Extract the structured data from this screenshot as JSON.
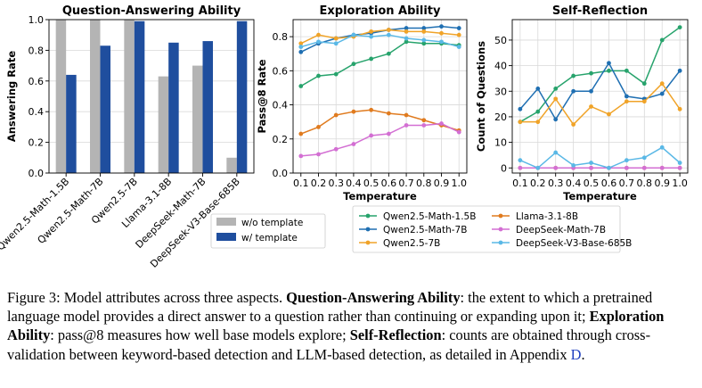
{
  "colors": {
    "without_template": "#b4b4b4",
    "with_template": "#1f4e9e",
    "Qwen2.5-Math-1.5B": "#27a36c",
    "Qwen2.5-Math-7B": "#1f6fb2",
    "Qwen2.5-7B": "#f0a328",
    "Llama-3.1-8B": "#e07b1f",
    "DeepSeek-Math-7B": "#d36fd3",
    "DeepSeek-V3-Base-685B": "#5ab8e6",
    "reference_link": "#1f3fbf"
  },
  "chart_data": [
    {
      "type": "bar",
      "title": "Question-Answering Ability",
      "xlabel": "",
      "ylabel": "Answering Rate",
      "ylim": [
        0,
        1.0
      ],
      "yticks": [
        0.0,
        0.2,
        0.4,
        0.6,
        0.8,
        1.0
      ],
      "ytick_labels": [
        "0.0",
        "0.2",
        "0.4",
        "0.6",
        "0.8",
        "1.0"
      ],
      "categories": [
        "Qwen2.5-Math-1.5B",
        "Qwen2.5-Math-7B",
        "Qwen2.5-7B",
        "Llama-3.1-8B",
        "DeepSeek-Math-7B",
        "DeepSeek-V3-Base-685B"
      ],
      "series": [
        {
          "name": "w/o template",
          "values": [
            1.0,
            1.0,
            1.0,
            0.63,
            0.7,
            0.1
          ]
        },
        {
          "name": "w/ template",
          "values": [
            0.64,
            0.83,
            0.99,
            0.85,
            0.86,
            0.99
          ]
        }
      ],
      "legend_position": "bottom-right, below plot",
      "grid": true
    },
    {
      "type": "line",
      "title": "Exploration Ability",
      "xlabel": "Temperature",
      "ylabel": "Pass@8 Rate",
      "ylim": [
        0.0,
        0.9
      ],
      "yticks": [
        0.0,
        0.2,
        0.4,
        0.6,
        0.8
      ],
      "ytick_labels": [
        "0.0",
        "0.2",
        "0.4",
        "0.6",
        "0.8"
      ],
      "x": [
        0.1,
        0.2,
        0.3,
        0.4,
        0.5,
        0.6,
        0.7,
        0.8,
        0.9,
        1.0
      ],
      "xtick_labels": [
        "0.1",
        "0.2",
        "0.3",
        "0.4",
        "0.5",
        "0.6",
        "0.7",
        "0.8",
        "0.9",
        "1.0"
      ],
      "series": [
        {
          "name": "Qwen2.5-Math-1.5B",
          "values": [
            0.51,
            0.57,
            0.58,
            0.64,
            0.67,
            0.7,
            0.77,
            0.76,
            0.76,
            0.75
          ]
        },
        {
          "name": "Qwen2.5-Math-7B",
          "values": [
            0.71,
            0.76,
            0.79,
            0.81,
            0.82,
            0.84,
            0.85,
            0.85,
            0.86,
            0.85
          ]
        },
        {
          "name": "Qwen2.5-7B",
          "values": [
            0.76,
            0.81,
            0.79,
            0.8,
            0.83,
            0.84,
            0.83,
            0.83,
            0.82,
            0.81
          ]
        },
        {
          "name": "Llama-3.1-8B",
          "values": [
            0.23,
            0.27,
            0.34,
            0.36,
            0.37,
            0.35,
            0.34,
            0.31,
            0.28,
            0.25
          ]
        },
        {
          "name": "DeepSeek-Math-7B",
          "values": [
            0.1,
            0.11,
            0.14,
            0.17,
            0.22,
            0.23,
            0.28,
            0.28,
            0.29,
            0.24
          ]
        },
        {
          "name": "DeepSeek-V3-Base-685B",
          "values": [
            0.74,
            0.77,
            0.76,
            0.81,
            0.8,
            0.81,
            0.79,
            0.78,
            0.77,
            0.74
          ]
        }
      ],
      "grid": true
    },
    {
      "type": "line",
      "title": "Self-Reflection",
      "xlabel": "Temperature",
      "ylabel": "Count of Questions",
      "ylim": [
        -2,
        58
      ],
      "yticks": [
        0,
        10,
        20,
        30,
        40,
        50
      ],
      "ytick_labels": [
        "0",
        "10",
        "20",
        "30",
        "40",
        "50"
      ],
      "x": [
        0.1,
        0.2,
        0.3,
        0.4,
        0.5,
        0.6,
        0.7,
        0.8,
        0.9,
        1.0
      ],
      "xtick_labels": [
        "0.1",
        "0.2",
        "0.3",
        "0.4",
        "0.5",
        "0.6",
        "0.7",
        "0.8",
        "0.9",
        "1.0"
      ],
      "series": [
        {
          "name": "Qwen2.5-Math-1.5B",
          "values": [
            18,
            22,
            31,
            36,
            37,
            38,
            38,
            33,
            50,
            55
          ]
        },
        {
          "name": "Qwen2.5-Math-7B",
          "values": [
            23,
            31,
            19,
            30,
            30,
            41,
            28,
            27,
            29,
            38
          ]
        },
        {
          "name": "Qwen2.5-7B",
          "values": [
            18,
            18,
            27,
            17,
            24,
            21,
            26,
            26,
            33,
            23
          ]
        },
        {
          "name": "Llama-3.1-8B",
          "values": [
            0,
            0,
            0,
            0,
            0,
            0,
            0,
            0,
            0,
            0
          ]
        },
        {
          "name": "DeepSeek-Math-7B",
          "values": [
            0,
            0,
            0,
            0,
            0,
            0,
            0,
            0,
            0,
            0
          ]
        },
        {
          "name": "DeepSeek-V3-Base-685B",
          "values": [
            3,
            0,
            6,
            1,
            2,
            0,
            3,
            4,
            8,
            2
          ]
        }
      ],
      "grid": true
    }
  ],
  "legend": {
    "left_column": [
      "Qwen2.5-Math-1.5B",
      "Qwen2.5-Math-7B",
      "Qwen2.5-7B"
    ],
    "right_column": [
      "Llama-3.1-8B",
      "DeepSeek-Math-7B",
      "DeepSeek-V3-Base-685B"
    ]
  },
  "caption": {
    "p1": "Figure 3: Model attributes across three aspects. ",
    "b1": "Question-Answering Ability",
    "p2": ": the extent to which a pretrained language model provides a direct answer to a question rather than continuing or expanding upon it; ",
    "b2": "Exploration Ability",
    "p3": ": pass@8 measures how well base models explore; ",
    "b3": "Self-Reflection",
    "p4": ": counts are obtained through cross-validation between keyword-based detection and LLM-based detection, as detailed in Appendix ",
    "ref": "D",
    "p5": "."
  }
}
